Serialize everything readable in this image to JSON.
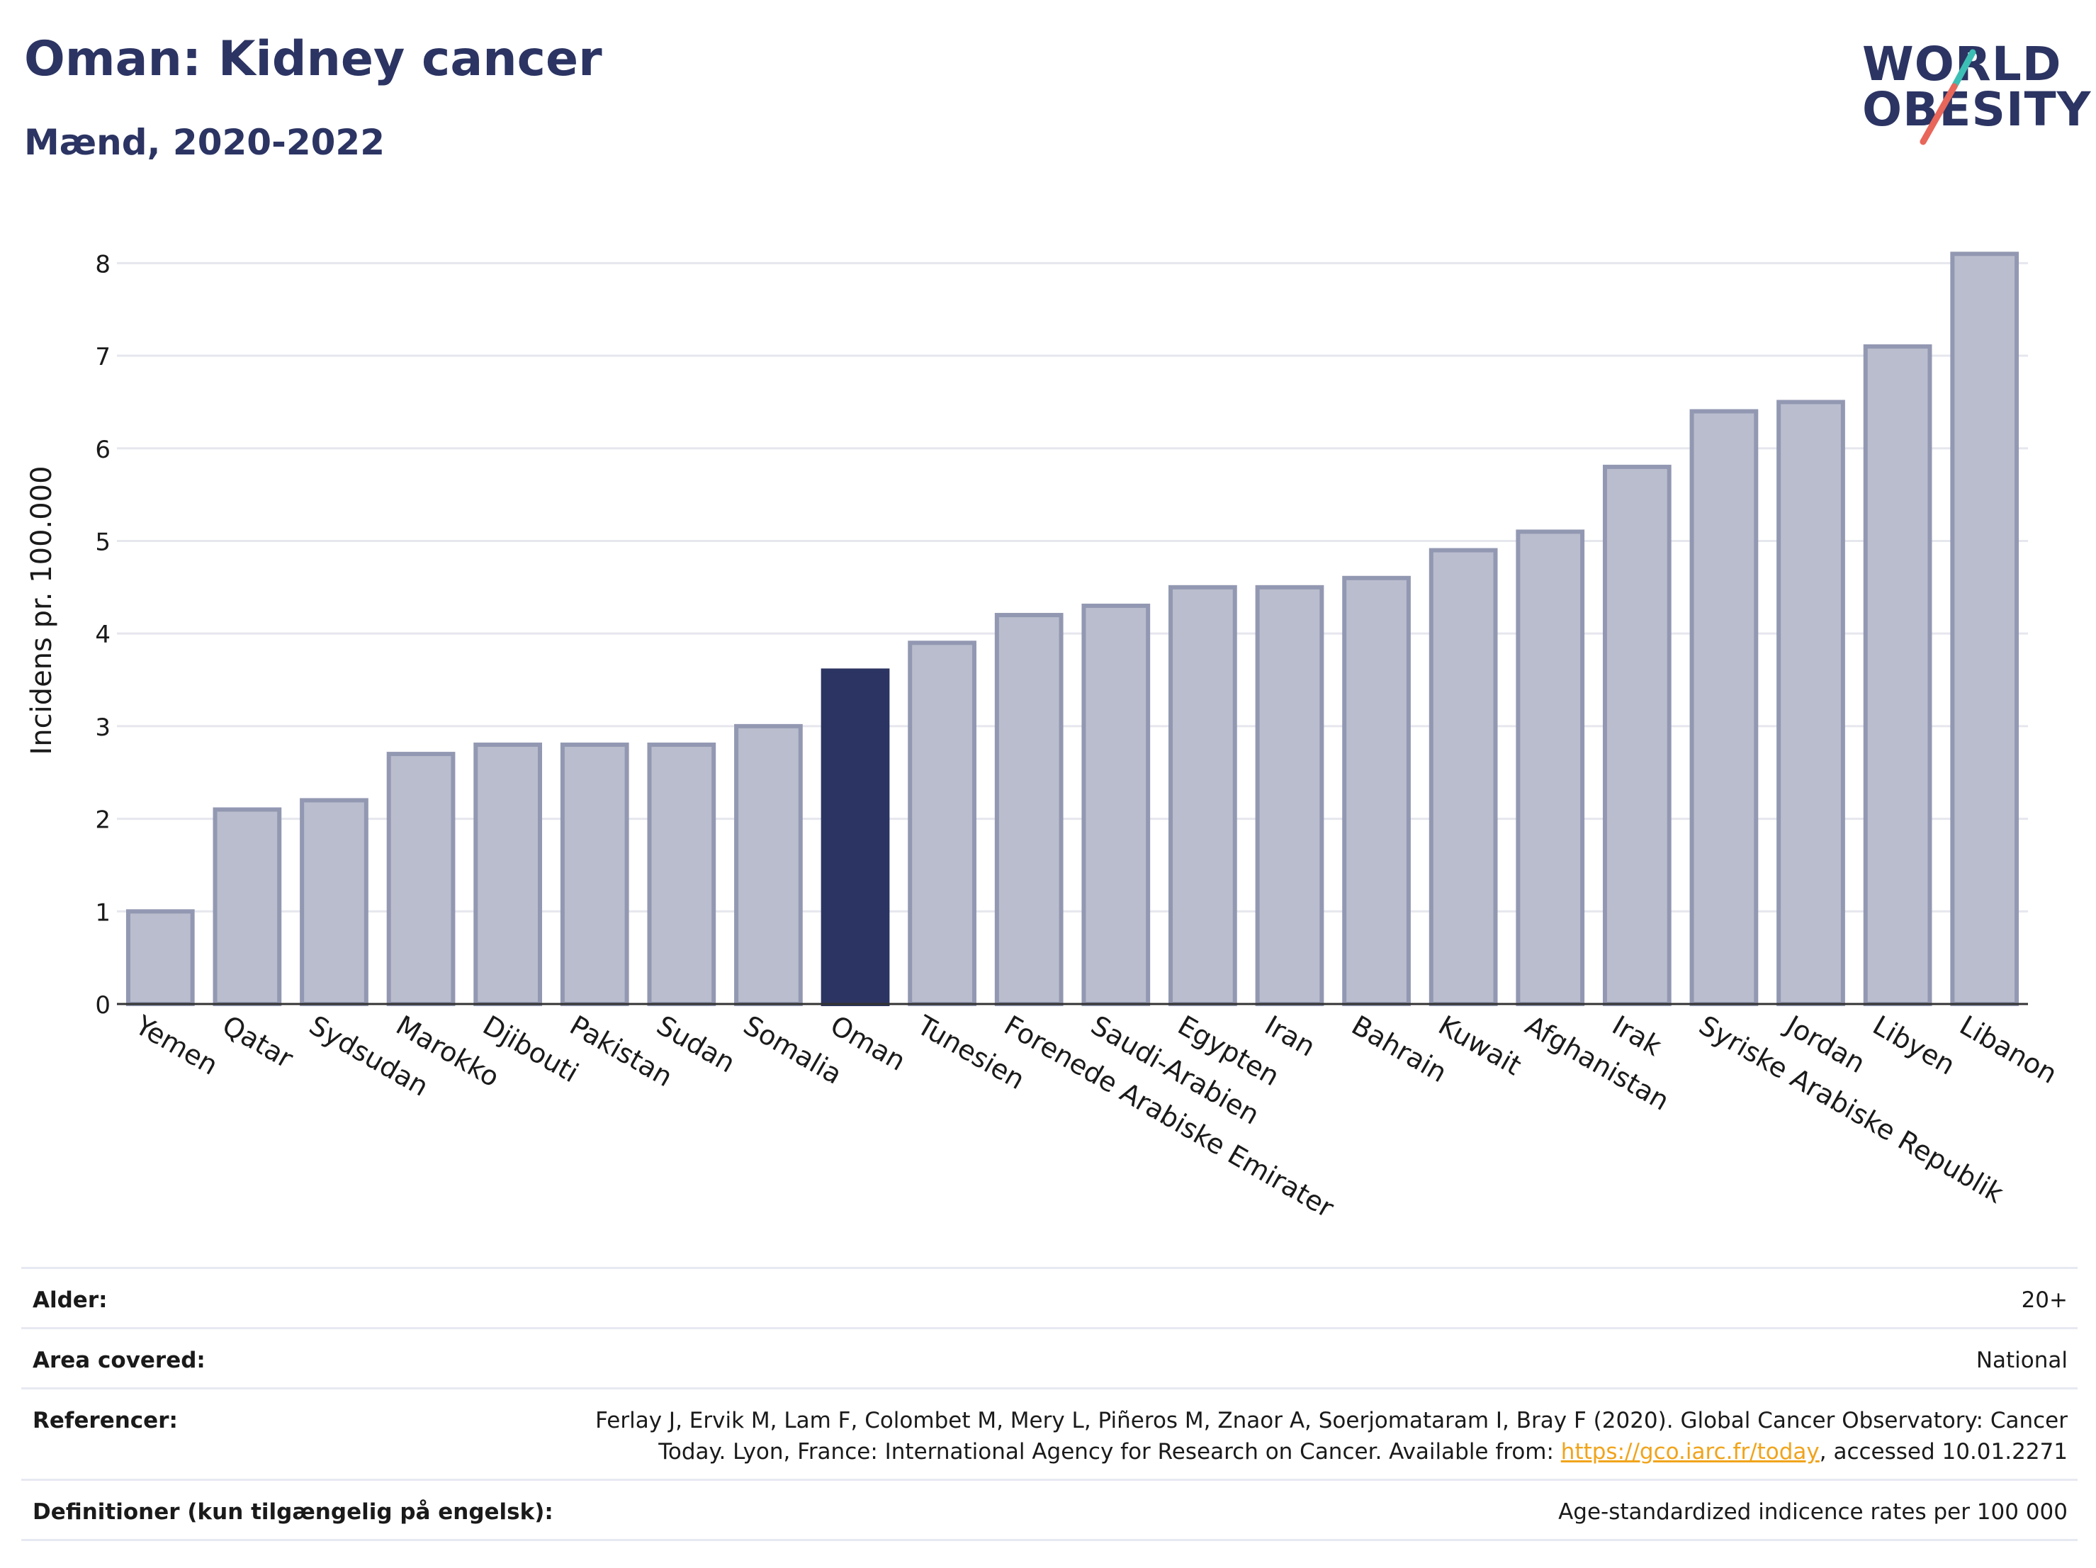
{
  "header": {
    "title": "Oman: Kidney cancer",
    "subtitle": "Mænd, 2020-2022"
  },
  "logo": {
    "line1": "WORLD",
    "line2": "OBESITY",
    "accent_colors": [
      "#3cbfb4",
      "#e8665a"
    ]
  },
  "chart_data": {
    "type": "bar",
    "ylabel": "Incidens pr. 100.000",
    "ylim": [
      0,
      8.5
    ],
    "yticks": [
      0,
      1,
      2,
      3,
      4,
      5,
      6,
      7,
      8
    ],
    "grid": true,
    "highlight": "Oman",
    "colors": {
      "bar": "#b9bdcd",
      "bar_border": "#9398b2",
      "highlight": "#2b3462"
    },
    "categories": [
      "Yemen",
      "Qatar",
      "Sydsudan",
      "Marokko",
      "Djibouti",
      "Pakistan",
      "Sudan",
      "Somalia",
      "Oman",
      "Tunesien",
      "Forenede Arabiske Emirater",
      "Saudi-Arabien",
      "Egypten",
      "Iran",
      "Bahrain",
      "Kuwait",
      "Afghanistan",
      "Irak",
      "Syriske Arabiske Republik",
      "Jordan",
      "Libyen",
      "Libanon"
    ],
    "values": [
      1.0,
      2.1,
      2.2,
      2.7,
      2.8,
      2.8,
      2.8,
      3.0,
      3.6,
      3.9,
      4.2,
      4.3,
      4.5,
      4.5,
      4.6,
      4.9,
      5.1,
      5.8,
      6.4,
      6.5,
      7.1,
      8.1
    ]
  },
  "info": {
    "rows": [
      {
        "label": "Alder:",
        "value": "20+"
      },
      {
        "label": "Area covered:",
        "value": "National"
      },
      {
        "label": "Referencer:",
        "value_pre": "Ferlay J, Ervik M, Lam F, Colombet M, Mery L, Piñeros M, Znaor A, Soerjomataram I, Bray F (2020). Global Cancer Observatory: Cancer Today. Lyon, France: International Agency for Research on Cancer. Available from: ",
        "link": "https://gco.iarc.fr/today",
        "value_post": ", accessed 10.01.2271"
      },
      {
        "label": "Definitioner (kun tilgængelig på engelsk):",
        "value": "Age-standardized indicence rates per 100 000"
      }
    ]
  }
}
